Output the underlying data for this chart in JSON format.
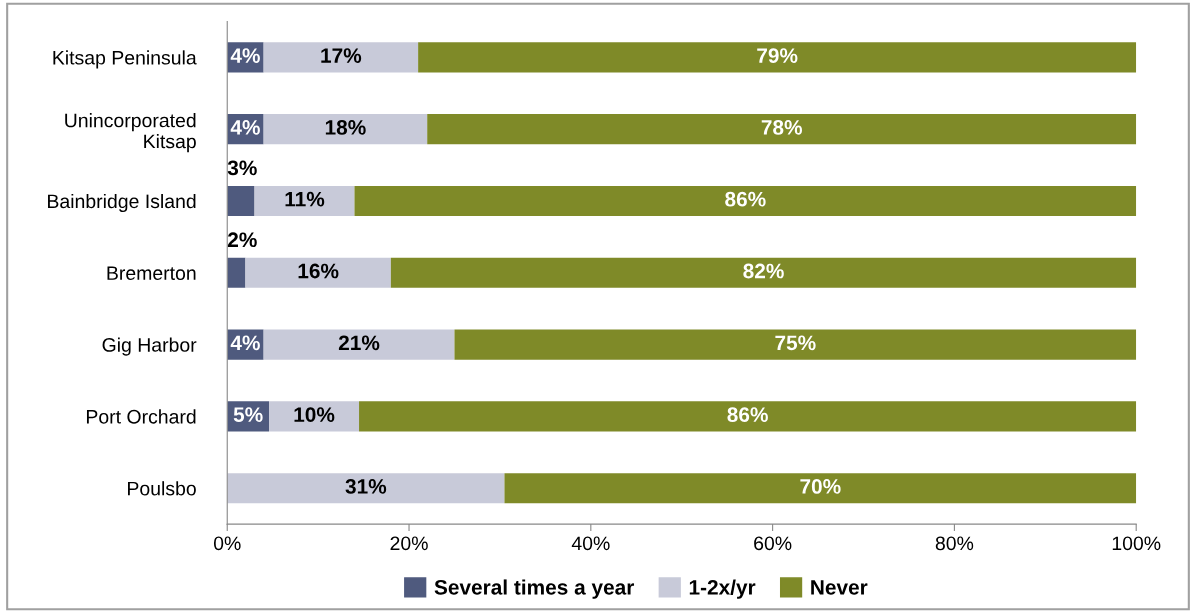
{
  "chart_data": {
    "type": "bar",
    "orientation": "horizontal",
    "stacked": true,
    "categories": [
      "Kitsap Peninsula",
      "Unincorporated\nKitsap",
      "Bainbridge Island",
      "Bremerton",
      "Gig Harbor",
      "Port Orchard",
      "Poulsbo"
    ],
    "series": [
      {
        "name": "Several times a year",
        "color": "#4f5a7e",
        "values": [
          4,
          4,
          3,
          2,
          4,
          4.6,
          0
        ],
        "value_labels": [
          "4%",
          "4%",
          "3%",
          "2%",
          "4%",
          "5%",
          null
        ]
      },
      {
        "name": "1-2x/yr",
        "color": "#c8cad9",
        "values": [
          17,
          18,
          11,
          16,
          21,
          9.9,
          30.5
        ],
        "value_labels": [
          "17%",
          "18%",
          "11%",
          "16%",
          "21%",
          "10%",
          "31%"
        ]
      },
      {
        "name": "Never",
        "color": "#7f8a28",
        "values": [
          79,
          78,
          86,
          82,
          75,
          85.5,
          69.5
        ],
        "value_labels": [
          "79%",
          "78%",
          "86%",
          "82%",
          "75%",
          "86%",
          "70%"
        ]
      }
    ],
    "xlim": [
      0,
      100
    ],
    "xticks": [
      {
        "value": 0,
        "label": "0%"
      },
      {
        "value": 20,
        "label": "20%"
      },
      {
        "value": 40,
        "label": "40%"
      },
      {
        "value": 60,
        "label": "60%"
      },
      {
        "value": 80,
        "label": "80%"
      },
      {
        "value": 100,
        "label": "100%"
      }
    ],
    "grid": false,
    "legend": "bottom"
  }
}
